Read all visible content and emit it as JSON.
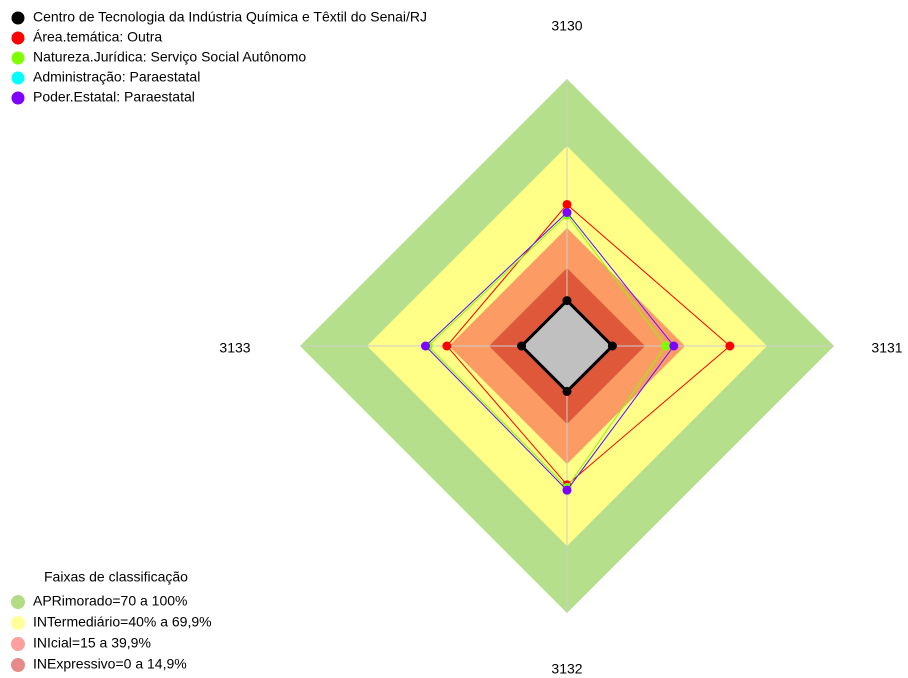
{
  "chart_data": {
    "type": "radar",
    "axes": [
      "3130",
      "3131",
      "3132",
      "3133"
    ],
    "ylim": [
      0,
      100
    ],
    "series": [
      {
        "name": "Centro de Tecnologia da Indústria Química e Têxtil do Senai/RJ",
        "color": "#000000",
        "values": [
          17,
          17,
          17,
          17
        ]
      },
      {
        "name": "Área.temática: Outra",
        "color": "#ff0000",
        "values": [
          53,
          61,
          52,
          45
        ]
      },
      {
        "name": "Natureza.Jurídica: Serviço Social Autônomo",
        "color": "#80ff00",
        "values": [
          49,
          37,
          53,
          52
        ]
      },
      {
        "name": "Administração: Paraestatal",
        "color": "#00ffff",
        "values": [
          50,
          40,
          54,
          53
        ]
      },
      {
        "name": "Poder.Estatal: Paraestatal",
        "color": "#8000ff",
        "values": [
          50,
          40,
          54,
          53
        ]
      }
    ],
    "bands_legend": {
      "title": "Faixas de classificação",
      "items": [
        {
          "label": "APRimorado=70 a 100%",
          "color": "#b3dd84"
        },
        {
          "label": "INTermediário=40% a 69,9%",
          "color": "#ffff99"
        },
        {
          "label": "INIcial=15 a 39,9%",
          "color": "#ff9f9f"
        },
        {
          "label": "INExpressivo=0 a 14,9%",
          "color": "#e88a8a"
        }
      ]
    }
  }
}
